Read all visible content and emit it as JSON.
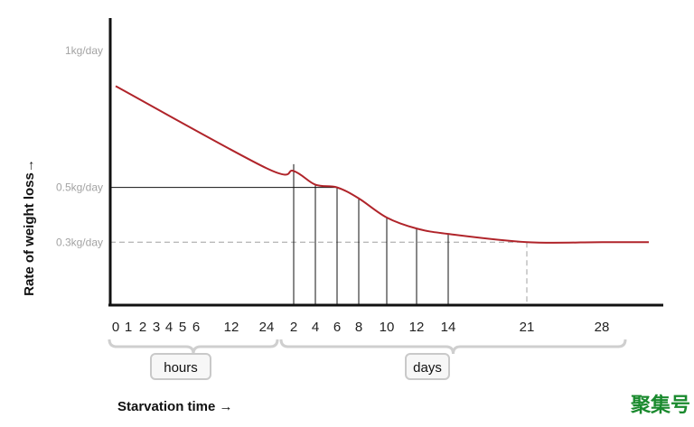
{
  "chart_data": {
    "type": "line",
    "xlabel": "Starvation time →",
    "ylabel": "Rate of weight loss→",
    "y_tick_labels": [
      {
        "value": 1.0,
        "label": "1kg/day"
      },
      {
        "value": 0.5,
        "label": "0.5kg/day"
      },
      {
        "value": 0.3,
        "label": "0.3kg/day"
      }
    ],
    "x_tick_labels": [
      "0",
      "1",
      "2",
      "3",
      "4",
      "5",
      "6",
      "12",
      "24",
      "2",
      "4",
      "6",
      "8",
      "10",
      "12",
      "14",
      "21",
      "28"
    ],
    "groups": [
      {
        "label": "hours",
        "ticks": [
          "0",
          "1",
          "2",
          "3",
          "4",
          "5",
          "6",
          "12",
          "24"
        ]
      },
      {
        "label": "days",
        "ticks": [
          "2",
          "4",
          "6",
          "8",
          "10",
          "12",
          "14",
          "21",
          "28"
        ]
      }
    ],
    "series": [
      {
        "color": "#b0242a",
        "points": [
          {
            "x": "start",
            "y": 0.87
          },
          {
            "x": "hour 24",
            "y": 0.57
          },
          {
            "x": "day 2",
            "y": 0.56
          },
          {
            "x": "day 4",
            "y": 0.51
          },
          {
            "x": "day 6",
            "y": 0.5
          },
          {
            "x": "day 8",
            "y": 0.46
          },
          {
            "x": "day 10",
            "y": 0.39
          },
          {
            "x": "day 12",
            "y": 0.35
          },
          {
            "x": "day 14",
            "y": 0.33
          },
          {
            "x": "day 21",
            "y": 0.3
          },
          {
            "x": "day 28",
            "y": 0.3
          },
          {
            "x": "end",
            "y": 0.3
          }
        ]
      }
    ],
    "reference_lines": [
      {
        "y": 0.5,
        "style": "solid",
        "color": "#111111"
      },
      {
        "y": 0.3,
        "style": "dashed",
        "color": "#a0a0a0"
      }
    ],
    "vertical_markers": [
      {
        "x": "day 2",
        "style": "solid"
      },
      {
        "x": "day 4",
        "style": "solid"
      },
      {
        "x": "day 6",
        "style": "solid"
      },
      {
        "x": "day 8",
        "style": "solid"
      },
      {
        "x": "day 10",
        "style": "solid"
      },
      {
        "x": "day 12",
        "style": "solid"
      },
      {
        "x": "day 14",
        "style": "solid"
      },
      {
        "x": "day 21",
        "style": "dashed"
      }
    ],
    "grid": false,
    "legend": "none"
  },
  "watermark": {
    "text": "聚集号",
    "color": "#1a8a2e"
  },
  "colors": {
    "curve": "#b0242a",
    "axis": "#111111",
    "muted": "#a3a3a3",
    "brace": "#cfcfcf"
  }
}
